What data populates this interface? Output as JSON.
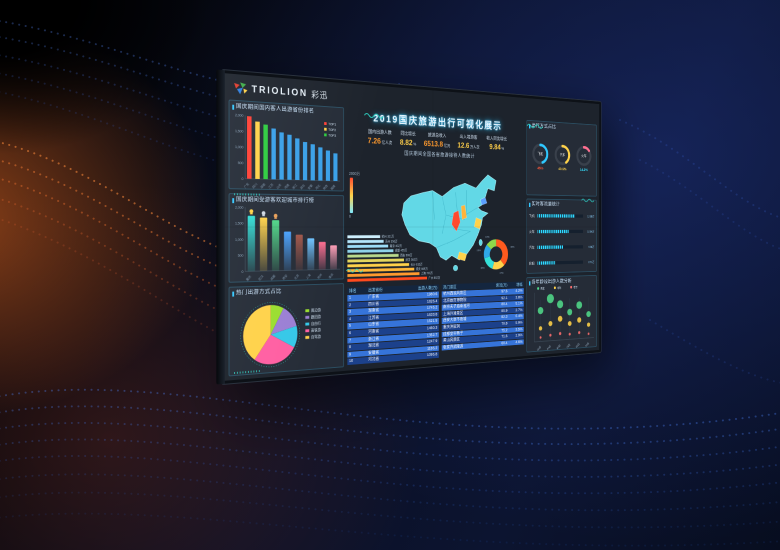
{
  "scene": {
    "brand": "TRIOLION",
    "brand_cn": "彩迅"
  },
  "dashboard": {
    "title": "2019国庆旅游出行可视化展示",
    "subtitle": "国庆期间全国各省旅游接待人数统计",
    "stats": [
      {
        "label": "国内出游人数",
        "value": "7.26",
        "unit": "亿人次",
        "color": "#ff9a2e"
      },
      {
        "label": "同比增长",
        "value": "8.82",
        "unit": "%",
        "color": "#ffcf4a"
      },
      {
        "label": "旅游总收入",
        "value": "6513.8",
        "unit": "亿元",
        "color": "#ff9a2e"
      },
      {
        "label": "出入境游客",
        "value": "12.6",
        "unit": "万人次",
        "color": "#ffcf4a"
      },
      {
        "label": "收入同比增长",
        "value": "9.84",
        "unit": "%",
        "color": "#ffcf4a"
      }
    ]
  },
  "colors": {
    "accent_cyan": "#35c8ff",
    "panel_border": "#40c8ff",
    "map_base": "#62d8e6"
  },
  "chart_data": [
    {
      "id": "province-bar",
      "type": "bar",
      "render": "vbar",
      "title": "国庆期间国内客人出游省份排名",
      "categories": [
        "广东",
        "四川",
        "湖南",
        "江苏",
        "山东",
        "河南",
        "浙江",
        "湖北",
        "安徽",
        "河北",
        "陕西",
        "福建"
      ],
      "values": [
        1980,
        1826,
        1745,
        1634,
        1522,
        1460,
        1353,
        1248,
        1186,
        1096,
        1002,
        918
      ],
      "unit": "万",
      "ylim": [
        0,
        2000
      ],
      "yticks": [
        0,
        500,
        1000,
        1500,
        2000
      ],
      "legend": [
        "TOP1",
        "TOP2",
        "TOP3"
      ],
      "legend_colors": [
        "#ff4136",
        "#ffd24a",
        "#2ecc40"
      ],
      "top_colors": [
        "#ff4136",
        "#ffd24a",
        "#2ecc40"
      ],
      "bar_color": "#3aa0e8"
    },
    {
      "id": "city-rank",
      "type": "bar",
      "render": "rankbar",
      "title": "国庆期间受游客欢迎城市排行榜",
      "categories": [
        "重庆",
        "武汉",
        "成都",
        "西安",
        "北京",
        "上海",
        "杭州",
        "南京"
      ],
      "values": [
        1850,
        1792,
        1705,
        1320,
        1215,
        1086,
        957,
        836
      ],
      "unit": "万",
      "ylim": [
        0,
        2000
      ],
      "yticks": [
        0,
        500,
        1000,
        1500,
        2000
      ],
      "medals": 3,
      "medal_colors": [
        "#ffd24a",
        "#cfd8e3",
        "#e8a05a"
      ],
      "bar_colors": [
        "#35e0d8",
        "#ffd24a",
        "#51d88a",
        "#4aa3ff",
        "#a2574a",
        "#6fc3ff",
        "#ff6f91",
        "#ff9fb8"
      ]
    },
    {
      "id": "travel-mode-pie",
      "type": "pie",
      "render": "pie",
      "title": "热门出游方式占比",
      "slices": [
        {
          "label": "周边游",
          "value": 8,
          "color": "#9ade2f"
        },
        {
          "label": "跟团游",
          "value": 13,
          "color": "#9b7fd4"
        },
        {
          "label": "自由行",
          "value": 12,
          "color": "#35c8e8"
        },
        {
          "label": "高铁游",
          "value": 27,
          "color": "#ff5fa2"
        },
        {
          "label": "自驾游",
          "value": 40,
          "color": "#ffd24a"
        }
      ]
    },
    {
      "id": "china-map",
      "type": "heatmap",
      "render": "map",
      "title": "全国游客接待热力分布",
      "legend": {
        "max": "2000万",
        "min": "0",
        "colors": [
          "#ff4a2e",
          "#ffd24a",
          "#7fe8ff"
        ]
      },
      "base_color": "#62d8e6",
      "highlights": [
        {
          "name": "陕西",
          "color": "#ff4a2e"
        },
        {
          "name": "山西",
          "color": "#ffb43a"
        },
        {
          "name": "江苏",
          "color": "#ffd24a"
        },
        {
          "name": "辽宁",
          "color": "#5aa0ff"
        },
        {
          "name": "广东",
          "color": "#ffd24a"
        }
      ]
    },
    {
      "id": "city-funnel",
      "type": "bar",
      "render": "funnel",
      "orientation": "horizontal",
      "title": "热门目的地客流排行",
      "categories": [
        "杭州",
        "苏州",
        "南京",
        "成都",
        "西安",
        "武汉",
        "长沙",
        "重庆",
        "上海",
        "广州"
      ],
      "values": [
        321,
        356,
        402,
        455,
        508,
        562,
        615,
        669,
        723,
        802
      ],
      "unit": "万",
      "colors": [
        "#cdeffd",
        "#b4e6fb",
        "#9cdcf7",
        "#8ed2ea",
        "#b9d98c",
        "#e3d55e",
        "#ffd24a",
        "#ffb83a",
        "#ff9a2e",
        "#ff4a1e"
      ]
    },
    {
      "id": "region-donut",
      "type": "pie",
      "render": "donut",
      "title": "出游区域占比",
      "slices": [
        {
          "label": "华东",
          "value": 38,
          "color": "#ff5a1e"
        },
        {
          "label": "西南",
          "value": 17,
          "color": "#ffd24a"
        },
        {
          "label": "华南",
          "value": 16,
          "color": "#35e0d8"
        },
        {
          "label": "华北",
          "value": 15,
          "color": "#2fa8e8"
        },
        {
          "label": "东北",
          "value": 14,
          "color": "#8fd84a"
        }
      ]
    },
    {
      "id": "province-table",
      "type": "table",
      "render": "table",
      "headers": [
        "排名",
        "出发省份",
        "出游人数(万)"
      ],
      "align": [
        "left",
        "left",
        "right"
      ],
      "rows": [
        [
          "1",
          "广东省",
          "1980.6"
        ],
        [
          "2",
          "四川省",
          "1826.4"
        ],
        [
          "3",
          "湖南省",
          "1745.2"
        ],
        [
          "4",
          "江苏省",
          "1633.8"
        ],
        [
          "5",
          "山东省",
          "1521.5"
        ],
        [
          "6",
          "河南省",
          "1460.3"
        ],
        [
          "7",
          "浙江省",
          "1352.7"
        ],
        [
          "8",
          "湖北省",
          "1247.9"
        ],
        [
          "9",
          "安徽省",
          "1186.2"
        ],
        [
          "10",
          "河北省",
          "1095.8"
        ]
      ]
    },
    {
      "id": "scenic-table",
      "type": "table",
      "render": "table",
      "headers": [
        "热门景区",
        "客流(万)",
        "增幅"
      ],
      "align": [
        "left",
        "right",
        "right"
      ],
      "rows": [
        [
          "杭州西湖风景区",
          "97.6",
          "4.2%"
        ],
        [
          "北京故宫博物院",
          "92.1",
          "3.8%"
        ],
        [
          "南京夫子庙秦淮河",
          "88.4",
          "5.1%"
        ],
        [
          "上海外滩景区",
          "85.9",
          "2.7%"
        ],
        [
          "西安大唐不夜城",
          "82.3",
          "6.4%"
        ],
        [
          "重庆洪崖洞",
          "79.8",
          "5.9%"
        ],
        [
          "成都宽窄巷子",
          "75.2",
          "3.5%"
        ],
        [
          "黄山风景区",
          "71.6",
          "2.9%"
        ],
        [
          "张家界武陵源",
          "68.4",
          "4.6%"
        ]
      ]
    },
    {
      "id": "transport-gauges",
      "type": "pie",
      "render": "gauges",
      "title": "出行方式占比",
      "gauges": [
        {
          "label": "飞机",
          "percent": 45.0,
          "ring": "#2fc8ff",
          "text": "#ff5a3c"
        },
        {
          "label": "汽车",
          "percent": 40.9,
          "ring": "#ffd24a",
          "text": "#ffd24a"
        },
        {
          "label": "火车",
          "percent": 14.2,
          "ring": "#ff6f91",
          "text": "#35e0ff"
        }
      ]
    },
    {
      "id": "flow-bars",
      "type": "bar",
      "render": "flow",
      "title": "实时客流量统计",
      "rows": [
        {
          "label": "飞机",
          "percent": 82,
          "value": "1268万"
        },
        {
          "label": "火车",
          "percent": 68,
          "value": "1054万"
        },
        {
          "label": "汽车",
          "percent": 56,
          "value": "926万"
        },
        {
          "label": "轮船",
          "percent": 38,
          "value": "671万"
        }
      ]
    },
    {
      "id": "age-bubbles",
      "type": "scatter",
      "render": "bubbles",
      "title": "各年龄段出游人数分析",
      "legend": [
        {
          "label": "青年",
          "color": "#51d88a"
        },
        {
          "label": "中年",
          "color": "#ffd24a"
        },
        {
          "label": "老年",
          "color": "#ff6f6f"
        }
      ],
      "categories": [
        "00后",
        "90后",
        "80后",
        "70后",
        "60后",
        "50后"
      ],
      "series": [
        {
          "name": "青年",
          "values": [
            62,
            88,
            74,
            55,
            70,
            48
          ]
        },
        {
          "name": "中年",
          "values": [
            38,
            52,
            66,
            48,
            58,
            40
          ]
        },
        {
          "name": "老年",
          "values": [
            20,
            30,
            36,
            28,
            34,
            22
          ]
        }
      ]
    }
  ]
}
